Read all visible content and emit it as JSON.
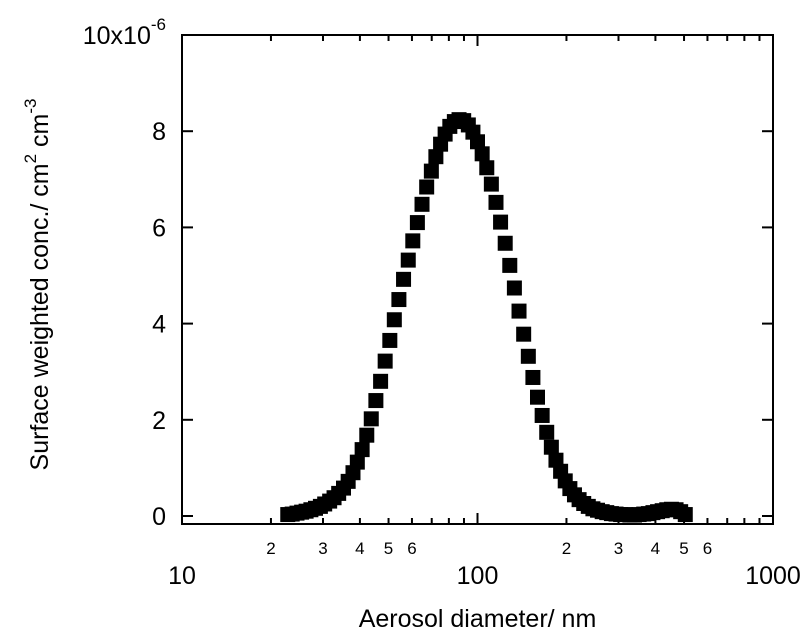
{
  "chart_data": {
    "type": "scatter",
    "xlabel": "Aerosol diameter/ nm",
    "ylabel": {
      "text": "Surface weighted conc./ cm",
      "sup1": "2",
      "mid": " cm",
      "sup2": "-3"
    },
    "xscale": "log",
    "xlim": [
      10,
      1000
    ],
    "ylim": [
      0,
      1e-05
    ],
    "grid": false,
    "legend": "none",
    "marker": "filled-square",
    "marker_color": "#000000",
    "x_major_ticks": [
      {
        "value": 10,
        "label": "10"
      },
      {
        "value": 100,
        "label": "100"
      },
      {
        "value": 1000,
        "label": "1000"
      }
    ],
    "x_minor_ticks": [
      {
        "value": 20,
        "label": "2"
      },
      {
        "value": 30,
        "label": "3"
      },
      {
        "value": 40,
        "label": "4"
      },
      {
        "value": 50,
        "label": "5"
      },
      {
        "value": 60,
        "label": "6"
      },
      {
        "value": 70,
        "label": ""
      },
      {
        "value": 80,
        "label": ""
      },
      {
        "value": 90,
        "label": ""
      },
      {
        "value": 200,
        "label": "2"
      },
      {
        "value": 300,
        "label": "3"
      },
      {
        "value": 400,
        "label": "4"
      },
      {
        "value": 500,
        "label": "5"
      },
      {
        "value": 600,
        "label": "6"
      },
      {
        "value": 700,
        "label": ""
      },
      {
        "value": 800,
        "label": ""
      },
      {
        "value": 900,
        "label": ""
      }
    ],
    "y_ticks": [
      {
        "value": 0,
        "label": "0"
      },
      {
        "value": 2e-06,
        "label": "2"
      },
      {
        "value": 4e-06,
        "label": "4"
      },
      {
        "value": 6e-06,
        "label": "6"
      },
      {
        "value": 8e-06,
        "label": "8"
      },
      {
        "value": 1e-05,
        "label": "10x10",
        "sup": "-6"
      }
    ],
    "series": [
      {
        "x": [
          22.8,
          23.6,
          24.5,
          25.4,
          26.3,
          27.3,
          28.3,
          29.4,
          30.4,
          31.6,
          32.7,
          33.9,
          35.2,
          36.5,
          37.9,
          39.2,
          40.7,
          42.2,
          43.7,
          45.3,
          47.0,
          48.7,
          50.5,
          52.3,
          54.2,
          56.2,
          58.3,
          60.4,
          62.6,
          64.9,
          67.3,
          69.8,
          72.3,
          75.0,
          77.7,
          80.6,
          83.5,
          86.6,
          89.8,
          93.1,
          96.5,
          100.0,
          103.7,
          107.5,
          111.4,
          115.5,
          119.7,
          124.1,
          128.6,
          133.3,
          138.2,
          143.3,
          148.6,
          154.0,
          159.6,
          165.5,
          171.5,
          177.8,
          184.3,
          191.1,
          198.1,
          205.4,
          212.9,
          220.7,
          228.8,
          237.1,
          245.8,
          254.8,
          264.2,
          273.8,
          283.9,
          294.3,
          305.1,
          316.2,
          327.8,
          339.8,
          352.3,
          365.2,
          378.6,
          392.4,
          406.8,
          421.7,
          437.1,
          453.2,
          469.8,
          487.0,
          504.8
        ],
        "y": [
          3e-08,
          4e-08,
          6e-08,
          8e-08,
          1e-07,
          1.3e-07,
          1.6e-07,
          2e-07,
          2.5e-07,
          3.1e-07,
          3.8e-07,
          4.7e-07,
          5.8e-07,
          7.2e-07,
          9e-07,
          1.12e-06,
          1.38e-06,
          1.68e-06,
          2.02e-06,
          2.4e-06,
          2.8e-06,
          3.22e-06,
          3.65e-06,
          4.08e-06,
          4.5e-06,
          4.92e-06,
          5.32e-06,
          5.72e-06,
          6.1e-06,
          6.48e-06,
          6.84e-06,
          7.17e-06,
          7.47e-06,
          7.73e-06,
          7.94e-06,
          8.1e-06,
          8.2e-06,
          8.24e-06,
          8.22e-06,
          8.13e-06,
          7.98e-06,
          7.78e-06,
          7.53e-06,
          7.24e-06,
          6.9e-06,
          6.52e-06,
          6.11e-06,
          5.67e-06,
          5.21e-06,
          4.74e-06,
          4.26e-06,
          3.78e-06,
          3.32e-06,
          2.88e-06,
          2.47e-06,
          2.09e-06,
          1.74e-06,
          1.43e-06,
          1.16e-06,
          9.3e-07,
          7.3e-07,
          5.7e-07,
          4.4e-07,
          3.4e-07,
          2.6e-07,
          2e-07,
          1.5e-07,
          1.2e-07,
          9e-08,
          7e-08,
          5e-08,
          4e-08,
          3e-08,
          3e-08,
          2e-08,
          2e-08,
          3e-08,
          4e-08,
          5e-08,
          7e-08,
          9e-08,
          1.1e-07,
          1.3e-07,
          1.4e-07,
          1.3e-07,
          9e-08,
          3e-08
        ]
      }
    ]
  }
}
